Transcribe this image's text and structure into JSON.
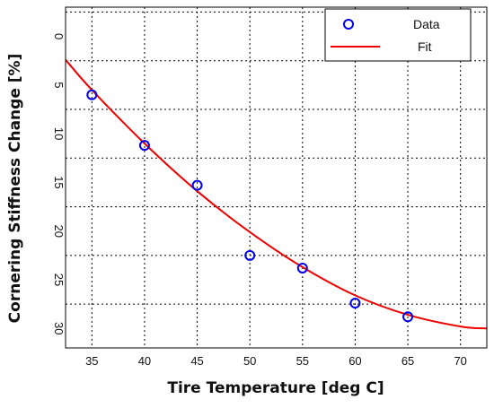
{
  "chart_data": {
    "type": "scatter",
    "title": "",
    "xlabel": "Tire Temperature [deg C]",
    "ylabel": "Cornering  Stiffness Change [%]",
    "xlim": [
      32.5,
      72.5
    ],
    "ylim": [
      -3,
      32
    ],
    "y_inverted": true,
    "grid": true,
    "grid_style": "dotted",
    "legend_position": "top-right",
    "x_ticks": [
      35,
      40,
      45,
      50,
      55,
      60,
      65,
      70
    ],
    "y_ticks": [
      0,
      5,
      10,
      15,
      20,
      25,
      30
    ],
    "x_tick_labels": [
      "35",
      "40",
      "45",
      "50",
      "55",
      "60",
      "65",
      "70"
    ],
    "y_tick_labels": [
      "0",
      "5",
      "10",
      "15",
      "20",
      "25",
      "30"
    ],
    "series": [
      {
        "name": "Data",
        "kind": "markers",
        "marker": "circle-open",
        "color": "#0000ee",
        "x": [
          35,
          40,
          45,
          50,
          55,
          60,
          65
        ],
        "y": [
          6.0,
          11.2,
          15.3,
          22.5,
          23.8,
          27.4,
          28.8
        ]
      },
      {
        "name": "Fit",
        "kind": "line",
        "color": "#ee0000",
        "x": [
          32.5,
          35,
          40,
          45,
          50,
          55,
          60,
          65,
          70,
          72.5
        ],
        "y": [
          2.4,
          5.5,
          11.0,
          15.9,
          20.1,
          23.7,
          26.6,
          28.6,
          29.8,
          30.0
        ]
      }
    ]
  }
}
